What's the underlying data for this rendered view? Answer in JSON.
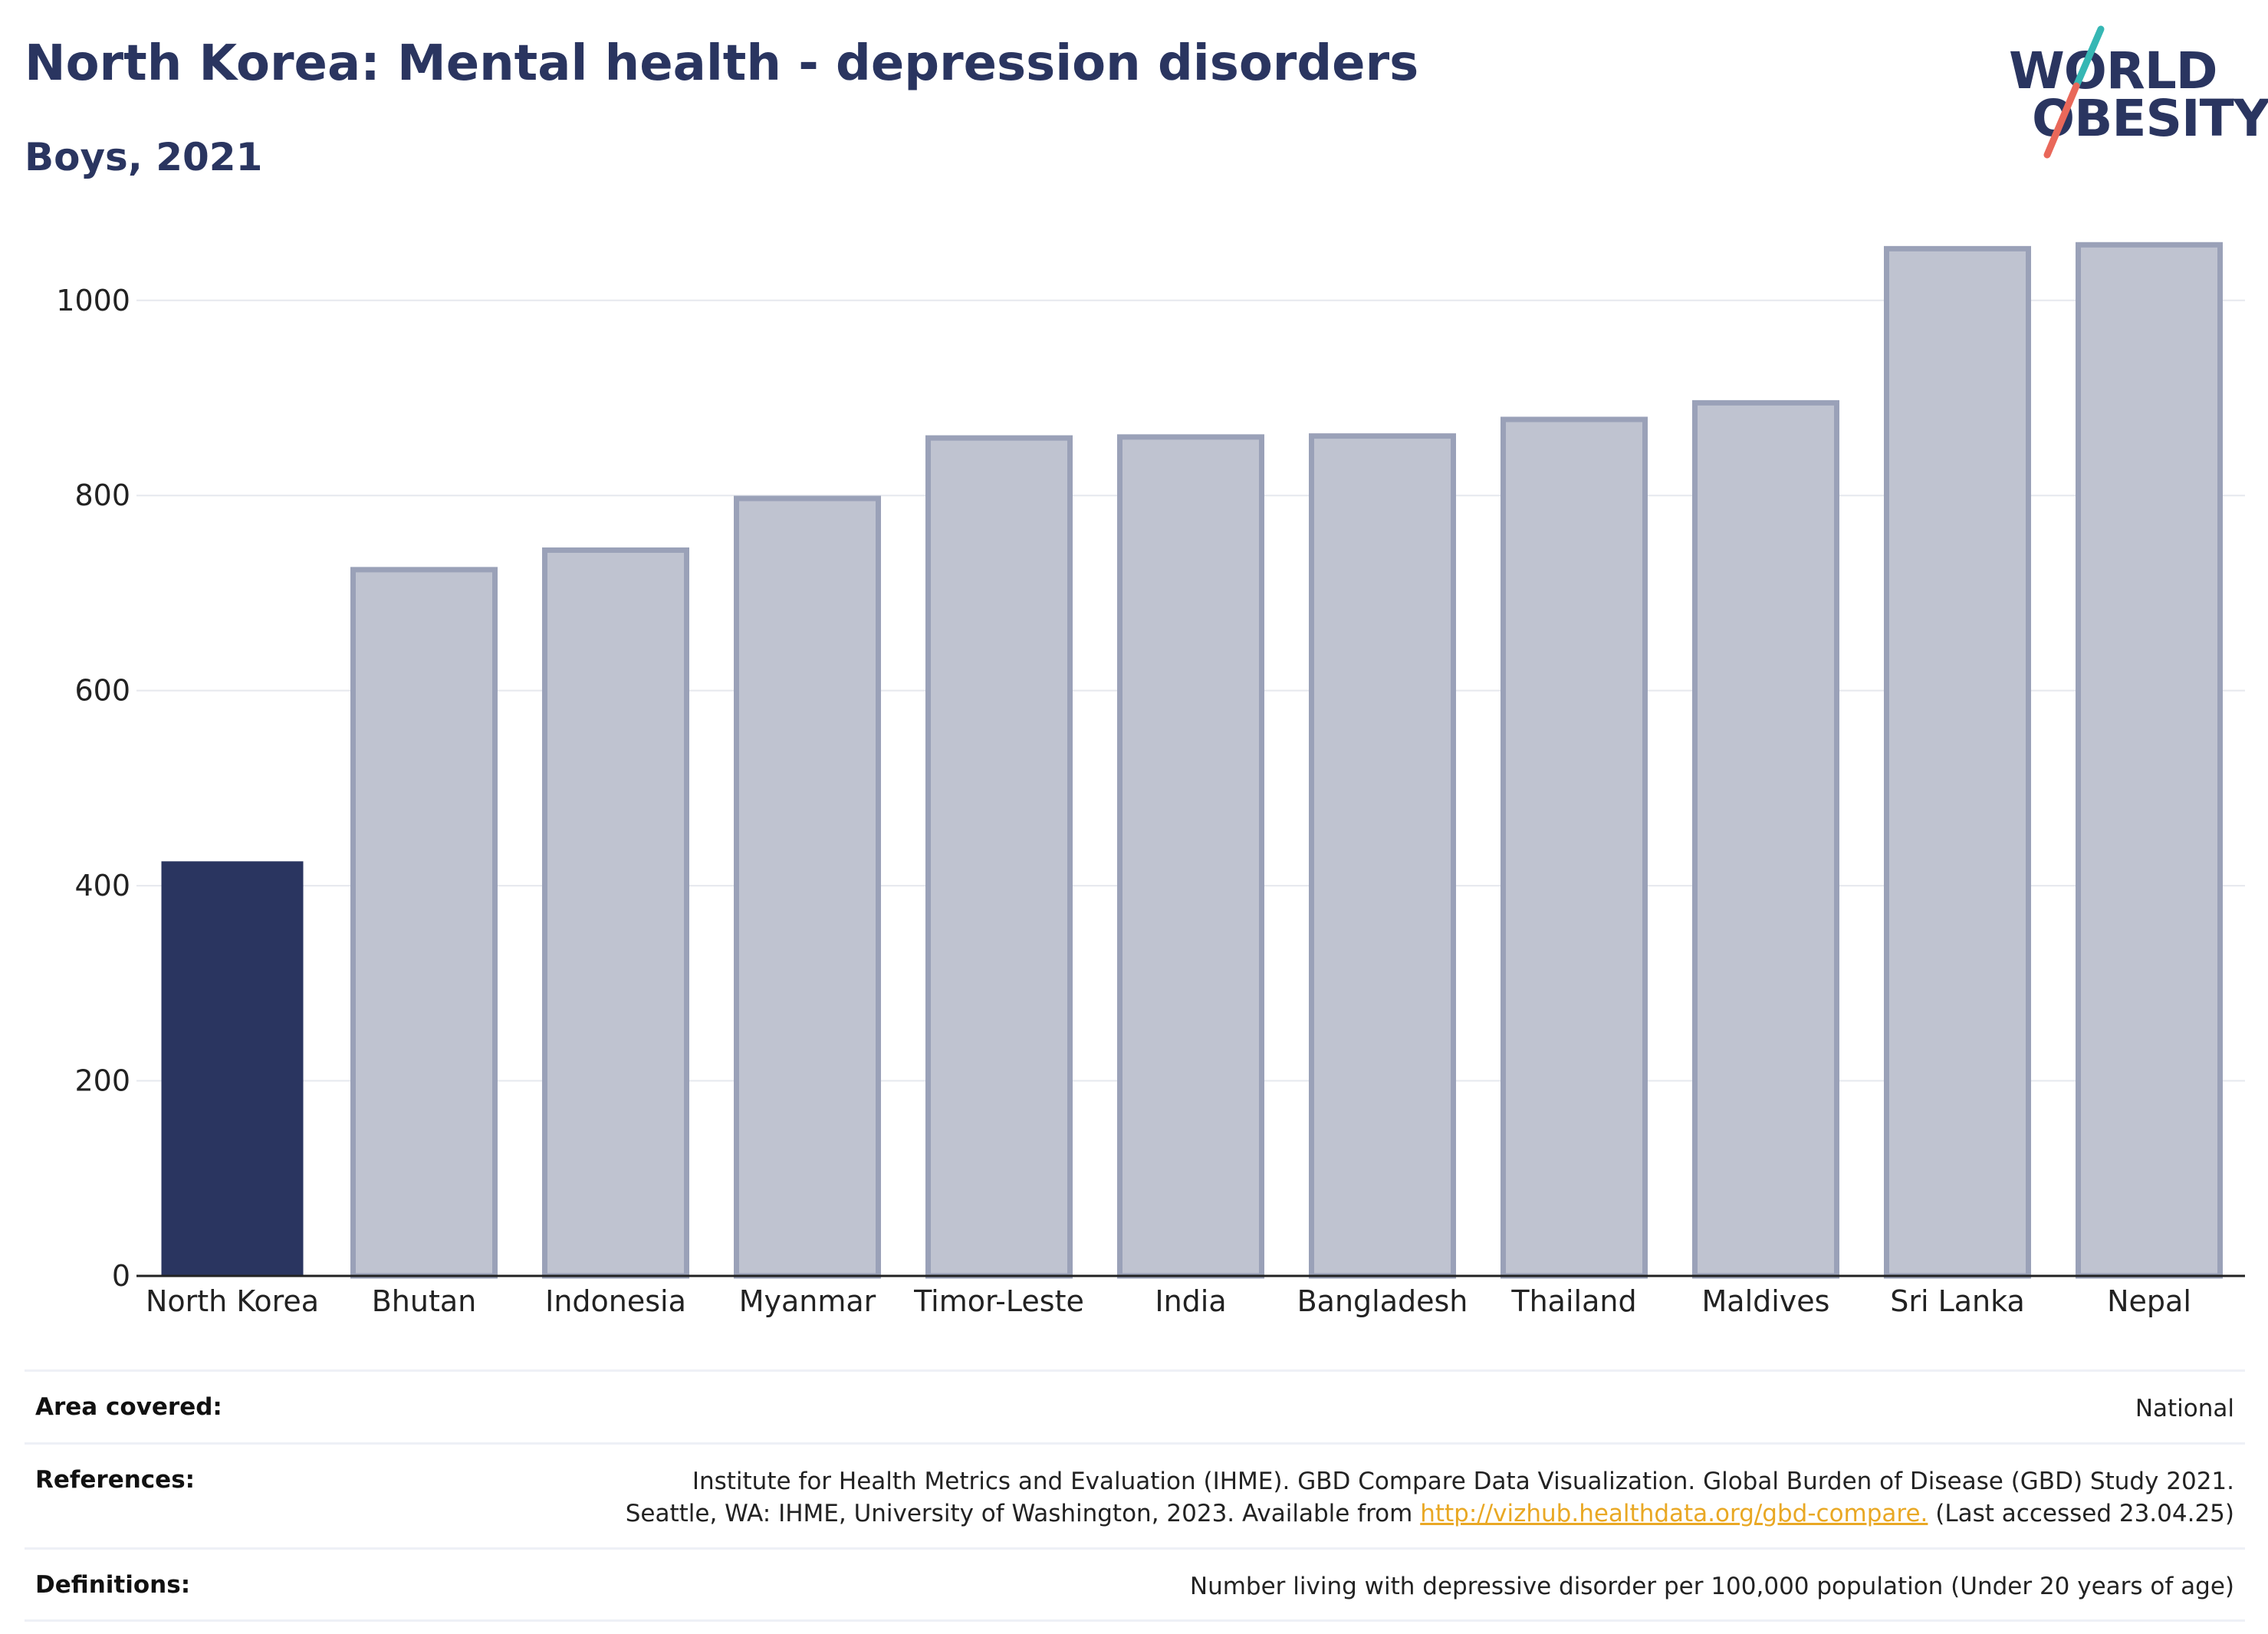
{
  "header": {
    "title": "North Korea: Mental health - depression disorders",
    "subtitle": "Boys, 2021"
  },
  "logo": {
    "line1": "WORLD",
    "line2": "OBESITY",
    "colors": {
      "text": "#2a3560",
      "slash_top": "#36b7b4",
      "slash_bottom": "#e9685a"
    }
  },
  "chart_data": {
    "type": "bar",
    "title": "North Korea: Mental health - depression disorders",
    "subtitle": "Boys, 2021",
    "xlabel": "",
    "ylabel": "",
    "categories": [
      "North Korea",
      "Bhutan",
      "Indonesia",
      "Myanmar",
      "Timor-Leste",
      "India",
      "Bangladesh",
      "Thailand",
      "Maldives",
      "Sri Lanka",
      "Nepal"
    ],
    "values": [
      425,
      724,
      744,
      797,
      859,
      860,
      861,
      878,
      895,
      1053,
      1057
    ],
    "highlight": "North Korea",
    "ylim": [
      0,
      1080
    ],
    "yticks": [
      0,
      200,
      400,
      600,
      800,
      1000
    ],
    "grid": true,
    "legend": "none",
    "colors": {
      "highlight_fill": "#2a3560",
      "other_fill": "#bfc3d0",
      "other_stroke": "#9aa1b8",
      "gridline": "#e6e8ee",
      "axis": "#222222"
    }
  },
  "info": {
    "area_label": "Area covered:",
    "area_value": "National",
    "references_label": "References:",
    "references_line1": "Institute for Health Metrics and Evaluation (IHME). GBD Compare Data Visualization. Global Burden of Disease (GBD) Study 2021.",
    "references_line2_pre": "Seattle, WA: IHME, University of Washington, 2023. Available from ",
    "references_link": "http://vizhub.healthdata.org/gbd-compare.",
    "references_line2_post": " (Last accessed 23.04.25)",
    "definitions_label": "Definitions:",
    "definitions_value": "Number living with depressive disorder per 100,000 population (Under 20 years of age)"
  }
}
